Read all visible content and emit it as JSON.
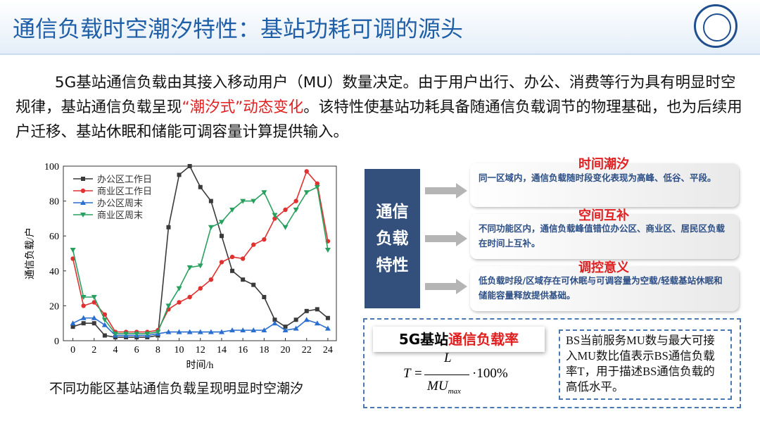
{
  "header": {
    "title": "通信负载时空潮汐特性：基站功耗可调的源头"
  },
  "paragraph": {
    "before": "5G基站通信负载由其接入移动用户（MU）数量决定。由于用户出行、办公、消费等行为具有明显时空规律，基站通信负载呈现",
    "highlight": "“潮汐式”动态变化",
    "after": "。该特性使基站功耗具备随通信负载调节的物理基础，也为后续用户迁移、基站休眠和储能可调容量计算提供输入。"
  },
  "chart_data": {
    "type": "line",
    "xlabel": "时间/h",
    "ylabel": "通信负载/户",
    "x": [
      0,
      1,
      2,
      3,
      4,
      5,
      6,
      7,
      8,
      9,
      10,
      11,
      12,
      13,
      14,
      15,
      16,
      17,
      18,
      19,
      20,
      21,
      22,
      23,
      24
    ],
    "xlim": [
      -0.9,
      24.8
    ],
    "xticks": [
      0,
      2,
      4,
      6,
      8,
      10,
      12,
      14,
      16,
      18,
      20,
      22,
      24
    ],
    "ylim": [
      0,
      100
    ],
    "yticks": [
      0,
      20,
      40,
      60,
      80,
      100
    ],
    "legend": "upper left",
    "series": [
      {
        "name": "办公区工作日",
        "color": "#3a3a3a",
        "marker": "square",
        "values": [
          8,
          10,
          10,
          3,
          2,
          2,
          2,
          2,
          3,
          65,
          95,
          100,
          88,
          80,
          60,
          40,
          35,
          32,
          25,
          12,
          8,
          12,
          17,
          18,
          13
        ]
      },
      {
        "name": "商业区工作日",
        "color": "#e03030",
        "marker": "circle",
        "values": [
          47,
          20,
          22,
          15,
          5,
          5,
          5,
          5,
          6,
          18,
          22,
          25,
          30,
          35,
          45,
          48,
          47,
          55,
          58,
          70,
          75,
          80,
          97,
          90,
          57
        ]
      },
      {
        "name": "办公区周末",
        "color": "#2a6fd0",
        "marker": "triangle-up",
        "values": [
          10,
          13,
          13,
          9,
          3,
          3,
          3,
          3,
          4,
          5,
          5,
          5,
          5,
          5,
          5,
          6,
          6,
          6,
          6,
          10,
          6,
          7,
          12,
          10,
          7
        ]
      },
      {
        "name": "商业区周末",
        "color": "#2aa060",
        "marker": "triangle-down",
        "values": [
          52,
          25,
          25,
          12,
          4,
          4,
          4,
          4,
          5,
          20,
          30,
          42,
          43,
          65,
          68,
          75,
          80,
          80,
          85,
          72,
          65,
          75,
          85,
          88,
          52
        ]
      }
    ]
  },
  "caption": "不同功能区基站通信负载呈现明显时空潮汐",
  "center_box": {
    "lines": [
      "通信",
      "负载",
      "特性"
    ]
  },
  "items": [
    {
      "title": "时间潮汐",
      "text": "同一区域内，通信负载随时段变化表现为高峰、低谷、平段。"
    },
    {
      "title": "空间互补",
      "text": "不同功能区内，通信负载峰值错位办公区、商业区、居民区负载在时间上互补。"
    },
    {
      "title": "调控意义",
      "text": "低负载时段/区域存在可休眠与可调容量为空载/轻载基站休眠和储能容量释放提供基础。"
    }
  ],
  "formula_box": {
    "title_black": "5G基站",
    "title_red": "通信负载率",
    "lhs": "T",
    "eq": "=",
    "numerator": "L",
    "denominator": "MU",
    "denominator_sub": "max",
    "suffix": "·100%",
    "description": "BS当前服务MU数与最大可接入MU数比值表示BS通信负载率T，用于描述BS通信负载的高低水平。"
  }
}
